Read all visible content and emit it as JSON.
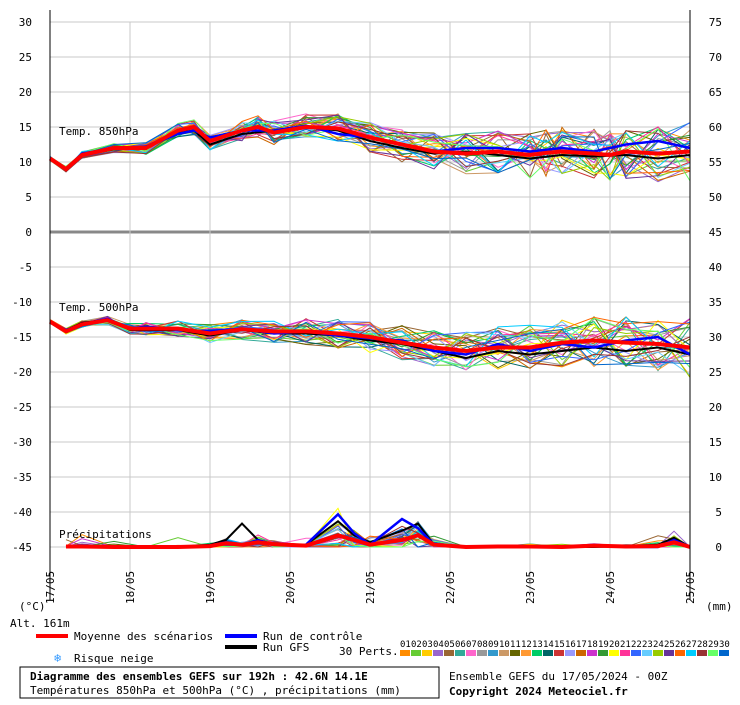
{
  "chart_data": {
    "type": "line",
    "panels": [
      {
        "label": "Temp. 850hPa",
        "left_ticks": [
          "30",
          "25",
          "20",
          "15",
          "10",
          "5",
          "0"
        ],
        "right_ticks": [
          "75",
          "70",
          "65",
          "60",
          "55",
          "50",
          "45"
        ],
        "ylim": [
          0,
          30
        ],
        "mean": [
          [
            0,
            10.5
          ],
          [
            0.5,
            9.0
          ],
          [
            1,
            11.0
          ],
          [
            2,
            12.0
          ],
          [
            3,
            12.0
          ],
          [
            4,
            14.5
          ],
          [
            4.5,
            15.0
          ],
          [
            5,
            13.0
          ],
          [
            6,
            14.5
          ],
          [
            6.5,
            15.0
          ],
          [
            7,
            14.2
          ],
          [
            8,
            15.0
          ],
          [
            9,
            14.8
          ],
          [
            10,
            13.5
          ],
          [
            11,
            12.5
          ],
          [
            12,
            11.5
          ],
          [
            13,
            11.2
          ],
          [
            14,
            11.5
          ],
          [
            15,
            11.0
          ],
          [
            15.5,
            11.3
          ],
          [
            16,
            11.5
          ],
          [
            17,
            11.2
          ],
          [
            17.5,
            11.0
          ],
          [
            18,
            11.5
          ],
          [
            19,
            11.2
          ],
          [
            20,
            11.5
          ]
        ],
        "control": [
          [
            0,
            10.5
          ],
          [
            0.5,
            9.0
          ],
          [
            1,
            11.2
          ],
          [
            2,
            12.0
          ],
          [
            3,
            12.2
          ],
          [
            4,
            14.0
          ],
          [
            4.5,
            14.5
          ],
          [
            5,
            13.5
          ],
          [
            6,
            14.5
          ],
          [
            7,
            14.5
          ],
          [
            8,
            15.2
          ],
          [
            9,
            14.0
          ],
          [
            10,
            13.5
          ],
          [
            11,
            12.5
          ],
          [
            12,
            11.5
          ],
          [
            13,
            12.0
          ],
          [
            14,
            12.0
          ],
          [
            15,
            11.5
          ],
          [
            16,
            12.0
          ],
          [
            17,
            11.5
          ],
          [
            18,
            12.5
          ],
          [
            19,
            13.0
          ],
          [
            20,
            12.0
          ]
        ],
        "gfs": [
          [
            0,
            10.5
          ],
          [
            0.5,
            9.0
          ],
          [
            1,
            11.0
          ],
          [
            2,
            11.8
          ],
          [
            3,
            12.0
          ],
          [
            4,
            14.2
          ],
          [
            4.5,
            14.5
          ],
          [
            5,
            12.5
          ],
          [
            6,
            14.0
          ],
          [
            7,
            14.5
          ],
          [
            8,
            15.0
          ],
          [
            9,
            14.5
          ],
          [
            10,
            13.0
          ],
          [
            11,
            12.0
          ],
          [
            12,
            11.2
          ],
          [
            13,
            11.5
          ],
          [
            14,
            11.0
          ],
          [
            15,
            10.5
          ],
          [
            16,
            11.0
          ],
          [
            17,
            10.8
          ],
          [
            18,
            11.0
          ],
          [
            19,
            10.5
          ],
          [
            20,
            11.0
          ]
        ]
      },
      {
        "label": "Temp. 500hPa",
        "left_ticks": [
          "-5",
          "-10",
          "-15",
          "-20",
          "-25"
        ],
        "right_ticks": [
          "40",
          "35",
          "30",
          "25",
          "20"
        ],
        "ylim": [
          -30,
          0
        ],
        "mean": [
          [
            0,
            -12.8
          ],
          [
            0.5,
            -14.2
          ],
          [
            1,
            -13.2
          ],
          [
            1.8,
            -12.6
          ],
          [
            2.5,
            -13.8
          ],
          [
            3,
            -13.8
          ],
          [
            4,
            -13.8
          ],
          [
            5,
            -14.5
          ],
          [
            6,
            -13.9
          ],
          [
            7,
            -14.2
          ],
          [
            8,
            -14.2
          ],
          [
            9,
            -14.5
          ],
          [
            10,
            -15.0
          ],
          [
            11,
            -15.8
          ],
          [
            12,
            -16.5
          ],
          [
            13,
            -17.0
          ],
          [
            14,
            -16.5
          ],
          [
            15,
            -16.5
          ],
          [
            16,
            -15.8
          ],
          [
            17,
            -15.5
          ],
          [
            18,
            -15.8
          ],
          [
            19,
            -16.0
          ],
          [
            20,
            -16.5
          ]
        ],
        "control": [
          [
            0,
            -12.8
          ],
          [
            0.5,
            -14.0
          ],
          [
            1,
            -13.2
          ],
          [
            1.8,
            -12.4
          ],
          [
            2.5,
            -13.8
          ],
          [
            3,
            -13.5
          ],
          [
            4,
            -14.0
          ],
          [
            5,
            -14.2
          ],
          [
            6,
            -13.8
          ],
          [
            7,
            -14.5
          ],
          [
            8,
            -14.2
          ],
          [
            9,
            -14.8
          ],
          [
            10,
            -15.2
          ],
          [
            11,
            -15.5
          ],
          [
            12,
            -17.0
          ],
          [
            13,
            -17.5
          ],
          [
            14,
            -16.0
          ],
          [
            15,
            -17.0
          ],
          [
            16,
            -16.0
          ],
          [
            17,
            -16.5
          ],
          [
            18,
            -15.5
          ],
          [
            19,
            -15.0
          ],
          [
            20,
            -17.5
          ]
        ],
        "gfs": [
          [
            0,
            -12.8
          ],
          [
            0.5,
            -14.0
          ],
          [
            1,
            -13.0
          ],
          [
            1.8,
            -12.5
          ],
          [
            2.5,
            -14.0
          ],
          [
            3,
            -14.0
          ],
          [
            4,
            -14.0
          ],
          [
            5,
            -14.8
          ],
          [
            6,
            -14.0
          ],
          [
            7,
            -14.5
          ],
          [
            8,
            -14.5
          ],
          [
            9,
            -14.8
          ],
          [
            10,
            -15.5
          ],
          [
            11,
            -16.0
          ],
          [
            12,
            -17.0
          ],
          [
            13,
            -18.0
          ],
          [
            14,
            -17.0
          ],
          [
            15,
            -17.5
          ],
          [
            16,
            -17.0
          ],
          [
            17,
            -16.5
          ],
          [
            18,
            -17.0
          ],
          [
            19,
            -16.5
          ],
          [
            20,
            -17.5
          ]
        ]
      },
      {
        "label": "Précipitations",
        "left_ticks": [
          "-30",
          "-35",
          "-40",
          "-45"
        ],
        "right_ticks": [
          "15",
          "10",
          "5",
          "0"
        ],
        "ylim": [
          0,
          15
        ],
        "mean": [
          [
            0.5,
            0.1
          ],
          [
            1,
            0.1
          ],
          [
            2,
            0
          ],
          [
            3,
            0
          ],
          [
            4,
            0
          ],
          [
            5,
            0.2
          ],
          [
            5.5,
            0.8
          ],
          [
            6,
            0.5
          ],
          [
            6.5,
            1.0
          ],
          [
            7,
            0.6
          ],
          [
            8,
            0.3
          ],
          [
            9,
            2.5
          ],
          [
            9.5,
            1.5
          ],
          [
            10,
            0.5
          ],
          [
            11,
            1.5
          ],
          [
            11.5,
            2.5
          ],
          [
            12,
            0.5
          ],
          [
            13,
            0
          ],
          [
            14,
            0.1
          ],
          [
            15,
            0.1
          ],
          [
            16,
            0
          ],
          [
            17,
            0.3
          ],
          [
            18,
            0.1
          ],
          [
            19,
            0.2
          ],
          [
            19.5,
            1.0
          ],
          [
            20,
            0
          ]
        ],
        "control": [
          [
            0.5,
            0.1
          ],
          [
            1,
            0.1
          ],
          [
            2,
            0
          ],
          [
            3,
            0
          ],
          [
            4,
            0
          ],
          [
            5,
            0.3
          ],
          [
            5.5,
            1.0
          ],
          [
            6,
            0.5
          ],
          [
            6.5,
            1.5
          ],
          [
            7,
            0.5
          ],
          [
            8,
            0.5
          ],
          [
            9,
            7.0
          ],
          [
            9.5,
            3.0
          ],
          [
            10,
            0.5
          ],
          [
            11,
            6.0
          ],
          [
            11.5,
            4.0
          ],
          [
            12,
            0.5
          ],
          [
            13,
            0
          ],
          [
            14,
            0
          ],
          [
            15,
            0
          ],
          [
            16,
            0
          ],
          [
            17,
            0.5
          ],
          [
            18,
            0
          ],
          [
            19,
            0
          ],
          [
            19.5,
            1.5
          ],
          [
            20,
            0
          ]
        ],
        "gfs": [
          [
            0.5,
            0.1
          ],
          [
            1,
            0
          ],
          [
            2,
            0
          ],
          [
            3,
            0
          ],
          [
            4,
            0
          ],
          [
            5,
            0.5
          ],
          [
            5.5,
            1.5
          ],
          [
            6,
            5.0
          ],
          [
            6.5,
            1.5
          ],
          [
            7,
            0.5
          ],
          [
            8,
            0.5
          ],
          [
            9,
            5.5
          ],
          [
            9.5,
            2.5
          ],
          [
            10,
            1.0
          ],
          [
            11,
            3.5
          ],
          [
            11.5,
            5.0
          ],
          [
            12,
            0.5
          ],
          [
            13,
            0
          ],
          [
            14,
            0
          ],
          [
            15,
            0
          ],
          [
            16,
            0
          ],
          [
            17,
            0
          ],
          [
            18,
            0.2
          ],
          [
            19,
            0.5
          ],
          [
            19.5,
            2.0
          ],
          [
            20,
            0
          ]
        ]
      }
    ],
    "x_ticks": [
      "17/05",
      "18/05",
      "19/05",
      "20/05",
      "21/05",
      "22/05",
      "23/05",
      "24/05",
      "25/05"
    ],
    "unit_left": "(°C)",
    "unit_right": "(mm)",
    "grid": true
  },
  "labels": {
    "alt": "Alt. 161m",
    "legend_mean": "Moyenne des scénarios",
    "legend_control": "Run de contrôle",
    "legend_gfs": "Run GFS",
    "legend_snow": "Risque neige",
    "perts": "30 Perts.",
    "title": "Diagramme des ensembles GEFS sur 192h : 42.6N 14.1E",
    "subtitle": "Températures 850hPa et 500hPa (°C) , précipitations (mm)",
    "run_info": "Ensemble GEFS du 17/05/2024 - 00Z",
    "copyright": "Copyright 2024 Meteociel.fr"
  },
  "perturbation_ids": [
    "01",
    "02",
    "03",
    "04",
    "05",
    "06",
    "07",
    "08",
    "09",
    "10",
    "11",
    "12",
    "13",
    "14",
    "15",
    "16",
    "17",
    "18",
    "19",
    "20",
    "21",
    "22",
    "23",
    "24",
    "25",
    "26",
    "27",
    "28",
    "29",
    "30"
  ],
  "colors": {
    "mean": "#ff0000",
    "control": "#0000ff",
    "gfs": "#000000",
    "grid": "#c8c8c8",
    "perturbations": [
      "#ff8c00",
      "#66cc33",
      "#ffcc00",
      "#9966cc",
      "#996633",
      "#33aa99",
      "#ff66cc",
      "#999999",
      "#3399cc",
      "#cc9966",
      "#666600",
      "#ff9933",
      "#00cc66",
      "#006666",
      "#cc3333",
      "#9999ff",
      "#cc6600",
      "#cc33cc",
      "#339933",
      "#ffff00",
      "#ff3399",
      "#3366ff",
      "#66ccff",
      "#99cc00",
      "#663399",
      "#ff6600",
      "#00ccff",
      "#993333",
      "#66ff66",
      "#0066cc"
    ]
  }
}
